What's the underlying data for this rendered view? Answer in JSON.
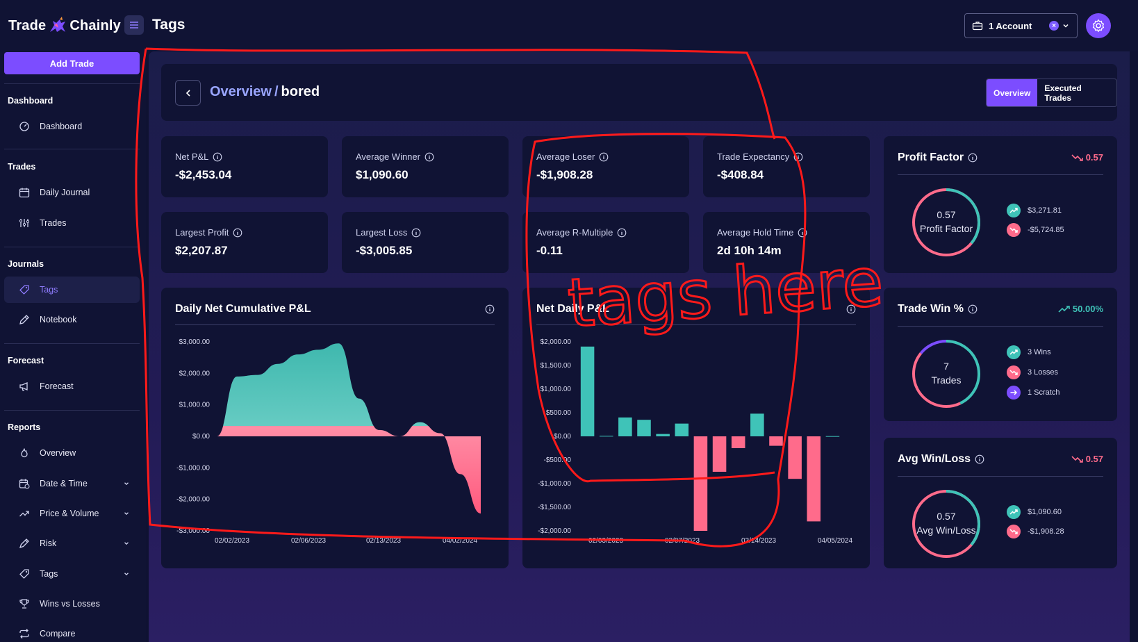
{
  "brand": {
    "left": "Trade",
    "right": "Chainly"
  },
  "header": {
    "title": "Tags",
    "account_label": "1 Account",
    "clear_glyph": "×"
  },
  "sidebar": {
    "add_trade": "Add Trade",
    "sections": {
      "dashboard": "Dashboard",
      "trades": "Trades",
      "journals": "Journals",
      "forecast": "Forecast",
      "reports": "Reports"
    },
    "items": {
      "dashboard": "Dashboard",
      "daily_journal": "Daily Journal",
      "trades": "Trades",
      "tags": "Tags",
      "notebook": "Notebook",
      "forecast": "Forecast",
      "overview": "Overview",
      "date_time": "Date & Time",
      "price_volume": "Price & Volume",
      "risk": "Risk",
      "tags_report": "Tags",
      "wins_losses": "Wins vs Losses",
      "compare": "Compare"
    }
  },
  "breadcrumb": {
    "parent": "Overview",
    "sep": "/",
    "current": "bored"
  },
  "view_tabs": {
    "overview": "Overview",
    "executed": "Executed Trades"
  },
  "stats": {
    "net_pnl": {
      "label": "Net P&L",
      "value": "-$2,453.04"
    },
    "avg_winner": {
      "label": "Average Winner",
      "value": "$1,090.60"
    },
    "avg_loser": {
      "label": "Average Loser",
      "value": "-$1,908.28"
    },
    "trade_expectancy": {
      "label": "Trade Expectancy",
      "value": "-$408.84"
    },
    "largest_profit": {
      "label": "Largest Profit",
      "value": "$2,207.87"
    },
    "largest_loss": {
      "label": "Largest Loss",
      "value": "-$3,005.85"
    },
    "avg_r_multiple": {
      "label": "Average R-Multiple",
      "value": "-0.11"
    },
    "avg_hold_time": {
      "label": "Average Hold Time",
      "value": "2d 10h 14m"
    }
  },
  "profit_factor": {
    "title": "Profit Factor",
    "trend": "0.57",
    "center_value": "0.57",
    "center_label": "Profit Factor",
    "gain": "$3,271.81",
    "loss": "-$5,724.85",
    "win_fraction": 0.36
  },
  "trade_win": {
    "title": "Trade Win %",
    "trend": "50.00%",
    "center_value": "7",
    "center_label": "Trades",
    "wins": "3 Wins",
    "losses": "3 Losses",
    "scratch": "1 Scratch",
    "win_count": 3,
    "loss_count": 3,
    "scratch_count": 1
  },
  "avg_win_loss": {
    "title": "Avg Win/Loss",
    "trend": "0.57",
    "center_value": "0.57",
    "center_label": "Avg Win/Loss",
    "win": "$1,090.60",
    "loss": "-$1,908.28",
    "win_fraction": 0.36
  },
  "colors": {
    "accent": "#7c4dff",
    "teal": "#3fc3b8",
    "pink": "#ff6b8b",
    "annotation": "#ff1a1a"
  },
  "annotation_text": "tags here",
  "chart_data": [
    {
      "type": "area",
      "title": "Daily Net Cumulative P&L",
      "y_ticks": [
        "$3,000.00",
        "$2,000.00",
        "$1,000.00",
        "$0.00",
        "-$1,000.00",
        "-$2,000.00",
        "-$3,000.00"
      ],
      "x_ticks": [
        "02/02/2023",
        "02/06/2023",
        "02/13/2023",
        "04/02/2024"
      ],
      "ylim": [
        -3000,
        3000
      ],
      "values": [
        0,
        1900,
        1950,
        2300,
        2600,
        2750,
        2950,
        1200,
        200,
        0,
        450,
        100,
        -1200,
        -2450
      ]
    },
    {
      "type": "bar",
      "title": "Net Daily P&L",
      "y_ticks": [
        "$2,000.00",
        "$1,500.00",
        "$1,000.00",
        "$500.00",
        "$0.00",
        "-$500.00",
        "-$1,000.00",
        "-$1,500.00",
        "-$2,000.00"
      ],
      "x_ticks": [
        "02/03/2023",
        "02/07/2023",
        "02/14/2023",
        "04/05/2024"
      ],
      "ylim": [
        -2000,
        2000
      ],
      "values": [
        1900,
        10,
        400,
        350,
        50,
        270,
        -2000,
        -750,
        -250,
        480,
        -200,
        -900,
        -1800,
        5
      ]
    }
  ]
}
